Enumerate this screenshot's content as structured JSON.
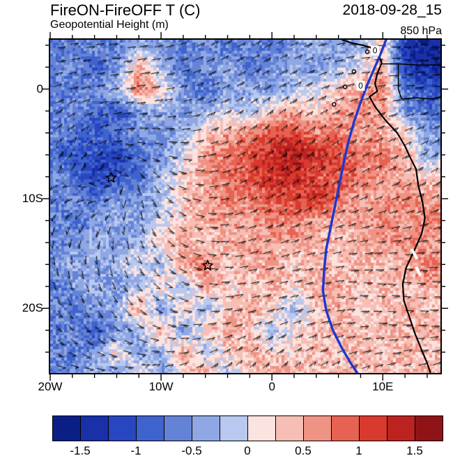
{
  "header": {
    "title": "FireON-FireOFF T (C)",
    "timestamp": "2018-09-28_15",
    "subtitle": "Geopotential Height (m)",
    "level": "850 hPa"
  },
  "chart_data": {
    "type": "heatmap",
    "title": "FireON-FireOFF T (C)",
    "subtitle": "Geopotential Height (m)",
    "timestamp": "2018-09-28_15",
    "pressure_level": "850 hPa",
    "variable": "FireON minus FireOFF temperature difference (C) at 850 hPa with wind barbs and geopotential height contour",
    "xlim": [
      -20,
      15.2
    ],
    "ylim": [
      -25.9,
      4.5
    ],
    "x_ticks": [
      {
        "label": "20W",
        "lon": -20
      },
      {
        "label": "10W",
        "lon": -10
      },
      {
        "label": "0",
        "lon": 0
      },
      {
        "label": "10E",
        "lon": 10
      }
    ],
    "y_ticks": [
      {
        "label": "0",
        "lat": 0
      },
      {
        "label": "10S",
        "lat": -10
      },
      {
        "label": "20S",
        "lat": -20
      }
    ],
    "grid": {
      "lons": [
        -20,
        -18,
        -16,
        -14,
        -12,
        -10,
        -8,
        -6,
        -4,
        -2,
        0,
        2,
        4,
        6,
        8,
        10,
        12,
        14
      ],
      "lats": [
        4,
        2,
        0,
        -2,
        -4,
        -6,
        -8,
        -10,
        -12,
        -14,
        -16,
        -18,
        -20,
        -22,
        -24,
        -26
      ],
      "units": "C",
      "values": [
        [
          -0.5,
          -0.75,
          -0.5,
          -0.75,
          -0.25,
          -0.5,
          -0.75,
          -0.5,
          -0.75,
          -0.5,
          -0.75,
          -0.5,
          -0.25,
          -0.5,
          -0.25,
          0.25,
          -1.25,
          -1.5
        ],
        [
          -0.75,
          -0.5,
          -1.0,
          -0.5,
          0.5,
          -0.25,
          -0.75,
          -0.5,
          -0.25,
          -0.75,
          -0.5,
          -0.25,
          -0.5,
          -0.25,
          0.0,
          0.5,
          -1.25,
          -1.5
        ],
        [
          -0.5,
          -0.75,
          -0.5,
          -0.25,
          0.75,
          0.25,
          -0.5,
          -0.75,
          -0.5,
          -0.25,
          -0.5,
          -0.25,
          0.0,
          0.25,
          0.5,
          0.75,
          -0.75,
          -1.0
        ],
        [
          -0.75,
          -0.5,
          -0.75,
          -1.0,
          -0.5,
          -0.25,
          -0.5,
          -0.25,
          0.0,
          -0.25,
          0.25,
          0.5,
          0.25,
          0.5,
          0.75,
          0.5,
          -0.5,
          -0.75
        ],
        [
          -0.5,
          -0.75,
          -1.0,
          -0.75,
          -0.5,
          -0.5,
          -0.25,
          0.25,
          0.5,
          0.75,
          1.0,
          1.0,
          0.75,
          0.75,
          0.5,
          0.5,
          0.25,
          -0.5
        ],
        [
          -0.75,
          -1.0,
          -1.0,
          -1.25,
          -0.75,
          -0.5,
          0.0,
          0.5,
          0.75,
          1.0,
          1.25,
          1.5,
          1.25,
          1.0,
          0.75,
          0.75,
          0.5,
          -0.25
        ],
        [
          -0.5,
          -0.75,
          -1.25,
          -1.0,
          -0.75,
          -0.25,
          0.25,
          0.5,
          0.75,
          1.0,
          1.25,
          1.25,
          1.0,
          1.0,
          0.75,
          0.5,
          0.5,
          0.25
        ],
        [
          -0.75,
          -0.5,
          -0.75,
          -0.5,
          -0.5,
          -0.25,
          0.25,
          0.5,
          0.75,
          0.75,
          1.0,
          1.0,
          1.25,
          0.75,
          0.5,
          0.5,
          0.75,
          0.5
        ],
        [
          -0.5,
          -0.75,
          -0.5,
          -0.25,
          -0.5,
          0.0,
          0.25,
          0.5,
          0.5,
          0.5,
          0.75,
          0.75,
          0.5,
          0.5,
          0.5,
          0.75,
          0.5,
          0.75
        ],
        [
          -0.75,
          -0.5,
          -0.25,
          -0.5,
          -0.25,
          0.25,
          0.5,
          0.25,
          0.5,
          0.5,
          0.5,
          0.5,
          0.5,
          0.25,
          0.5,
          0.5,
          0.75,
          0.5
        ],
        [
          -0.5,
          -0.25,
          -0.5,
          -0.25,
          0.0,
          -0.25,
          0.5,
          0.75,
          0.25,
          0.5,
          0.5,
          0.25,
          0.5,
          0.25,
          0.5,
          0.25,
          0.5,
          0.75
        ],
        [
          -0.75,
          -0.5,
          -0.25,
          -0.5,
          -0.25,
          0.25,
          -0.25,
          0.5,
          0.25,
          0.25,
          0.5,
          0.25,
          0.5,
          0.5,
          0.25,
          0.5,
          0.25,
          0.5
        ],
        [
          -0.5,
          -0.75,
          -0.5,
          -0.25,
          0.5,
          -0.5,
          0.25,
          -0.25,
          0.25,
          0.5,
          0.25,
          -0.25,
          0.25,
          0.5,
          0.25,
          0.25,
          0.5,
          0.25
        ],
        [
          -0.75,
          -0.5,
          -1.0,
          -0.5,
          -0.25,
          0.5,
          -0.5,
          0.25,
          0.5,
          0.25,
          -0.25,
          0.25,
          0.25,
          0.5,
          0.25,
          0.5,
          0.25,
          0.5
        ],
        [
          -0.5,
          -0.75,
          -0.5,
          0.25,
          -0.5,
          -0.25,
          0.5,
          -0.25,
          0.25,
          0.5,
          0.25,
          0.25,
          0.5,
          0.25,
          0.5,
          0.25,
          0.5,
          0.25
        ],
        [
          -0.75,
          -0.5,
          -0.25,
          -0.5,
          0.25,
          -0.5,
          0.25,
          0.5,
          -0.25,
          0.25,
          0.5,
          0.5,
          0.25,
          0.5,
          0.25,
          0.5,
          0.25,
          0.5
        ]
      ]
    },
    "colorbar": {
      "orientation": "horizontal",
      "levels": [
        -1.5,
        -1.25,
        -1.0,
        -0.75,
        -0.5,
        -0.25,
        0,
        0.25,
        0.5,
        0.75,
        1.0,
        1.25,
        1.5
      ],
      "tick_labels": [
        "-1.5",
        "-1",
        "-0.5",
        "0",
        "0.5",
        "1",
        "1.5"
      ],
      "colors": [
        "#0a1f86",
        "#1930a8",
        "#2746c0",
        "#3f63cc",
        "#6583d6",
        "#8fa8e4",
        "#b9c8ee",
        "#fbe3e0",
        "#f6beb4",
        "#ef9384",
        "#e66353",
        "#d93a2e",
        "#bb2220",
        "#8f1418"
      ]
    },
    "markers": [
      {
        "symbol": "star",
        "lon": -14.5,
        "lat": -8.1
      },
      {
        "symbol": "star",
        "lon": -5.8,
        "lat": -16.1
      }
    ],
    "islands": [
      [
        7.4,
        1.6
      ],
      [
        6.6,
        0.2
      ],
      [
        5.6,
        -1.4
      ],
      [
        8.6,
        3.4
      ]
    ],
    "coastline": [
      [
        6.3,
        4.5
      ],
      [
        7.2,
        4.2
      ],
      [
        8.2,
        4.0
      ],
      [
        8.9,
        3.8
      ],
      [
        9.6,
        3.2
      ],
      [
        9.9,
        2.4
      ],
      [
        9.5,
        1.4
      ],
      [
        9.3,
        0.5
      ],
      [
        9.5,
        -0.2
      ],
      [
        8.8,
        -0.7
      ],
      [
        9.3,
        -1.6
      ],
      [
        10.2,
        -2.8
      ],
      [
        11.3,
        -4.0
      ],
      [
        12.0,
        -5.2
      ],
      [
        12.4,
        -6.1
      ],
      [
        13.0,
        -7.3
      ],
      [
        13.2,
        -8.8
      ],
      [
        13.6,
        -10.4
      ],
      [
        13.8,
        -11.8
      ],
      [
        13.5,
        -13.2
      ],
      [
        12.8,
        -14.8
      ],
      [
        12.1,
        -16.3
      ],
      [
        11.8,
        -17.8
      ],
      [
        11.9,
        -19.3
      ],
      [
        12.4,
        -20.8
      ],
      [
        12.9,
        -22.3
      ],
      [
        13.5,
        -23.8
      ],
      [
        14.0,
        -25.0
      ],
      [
        14.3,
        -25.9
      ]
    ],
    "border_lines": [
      [
        [
          9.9,
          2.3
        ],
        [
          11.4,
          2.3
        ],
        [
          13.2,
          2.2
        ],
        [
          15.2,
          2.2
        ]
      ],
      [
        [
          11.4,
          2.3
        ],
        [
          11.4,
          1.0
        ],
        [
          11.4,
          0.0
        ],
        [
          11.7,
          -0.9
        ]
      ],
      [
        [
          11.7,
          -0.9
        ],
        [
          13.0,
          -0.8
        ],
        [
          14.4,
          -0.9
        ],
        [
          15.2,
          -0.7
        ]
      ]
    ],
    "height_contour": {
      "color": "#2036cc",
      "points": [
        [
          10.3,
          4.5
        ],
        [
          9.8,
          3.2
        ],
        [
          9.2,
          1.8
        ],
        [
          8.6,
          0.4
        ],
        [
          8.0,
          -1.2
        ],
        [
          7.4,
          -3.0
        ],
        [
          6.9,
          -4.8
        ],
        [
          6.5,
          -6.6
        ],
        [
          6.1,
          -8.6
        ],
        [
          5.7,
          -10.6
        ],
        [
          5.3,
          -12.6
        ],
        [
          4.9,
          -14.6
        ],
        [
          4.7,
          -16.6
        ],
        [
          4.6,
          -18.4
        ],
        [
          4.9,
          -20.2
        ],
        [
          5.5,
          -22.0
        ],
        [
          6.3,
          -23.6
        ],
        [
          7.1,
          -25.0
        ],
        [
          7.7,
          -25.9
        ]
      ]
    },
    "contour_labels": [
      {
        "text": "0",
        "lon": 9.3,
        "lat": 3.5
      },
      {
        "text": "0",
        "lon": 8.0,
        "lat": 0.3
      }
    ],
    "missing_data_dashes": [
      [
        [
          12.6,
          -14.6
        ],
        [
          13.1,
          -15.5
        ]
      ],
      [
        [
          13.0,
          -16.2
        ],
        [
          13.4,
          -17.0
        ]
      ]
    ],
    "wind_barbs_shown": true
  }
}
